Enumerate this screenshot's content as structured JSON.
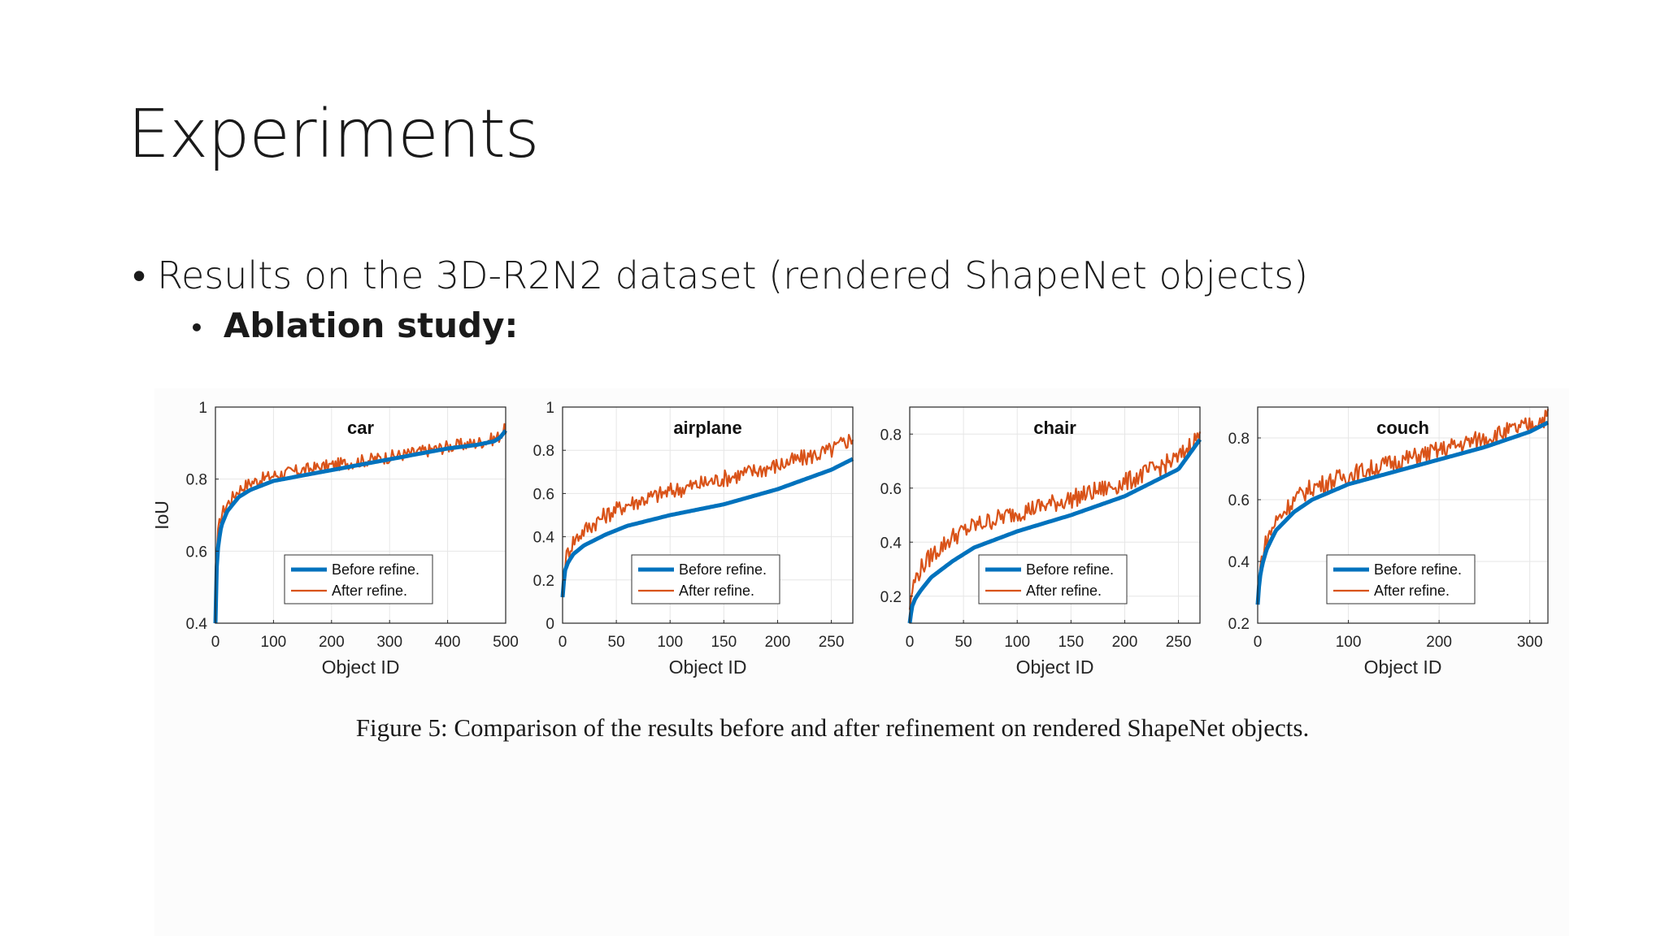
{
  "slide": {
    "title": "Experiments",
    "bullet_1": "Results on the 3D-R2N2 dataset (rendered ShapeNet objects)",
    "bullet_2": "Ablation study:",
    "bullet_marker": "•"
  },
  "figure": {
    "caption": "Figure 5: Comparison of the results before and after refinement on rendered ShapeNet objects."
  },
  "colors": {
    "before": "#0072bd",
    "after": "#d95319",
    "grid": "#e6e6e6",
    "axis": "#262626"
  },
  "chart_data": [
    {
      "type": "line",
      "title": "car",
      "xlabel": "Object ID",
      "ylabel": "IoU",
      "xlim": [
        0,
        500
      ],
      "ylim": [
        0.4,
        1
      ],
      "xticks": [
        0,
        100,
        200,
        300,
        400,
        500
      ],
      "yticks": [
        0.4,
        0.6,
        0.8,
        1
      ],
      "ytick_labels": [
        "0.4",
        "0.6",
        "0.8",
        "1"
      ],
      "grid": true,
      "legend": "bottom-right",
      "series": [
        {
          "name": "Before refine.",
          "x": [
            0,
            2,
            5,
            10,
            20,
            40,
            60,
            100,
            150,
            200,
            250,
            300,
            350,
            400,
            450,
            480,
            490,
            500
          ],
          "y": [
            0.4,
            0.55,
            0.62,
            0.67,
            0.71,
            0.75,
            0.77,
            0.795,
            0.81,
            0.825,
            0.84,
            0.855,
            0.87,
            0.885,
            0.895,
            0.905,
            0.915,
            0.935
          ]
        },
        {
          "name": "After refine.",
          "x": [
            0,
            2,
            5,
            10,
            20,
            40,
            60,
            100,
            150,
            200,
            250,
            300,
            350,
            400,
            450,
            480,
            490,
            500
          ],
          "y": [
            0.42,
            0.58,
            0.66,
            0.7,
            0.73,
            0.77,
            0.79,
            0.81,
            0.825,
            0.838,
            0.85,
            0.862,
            0.875,
            0.89,
            0.9,
            0.912,
            0.92,
            0.94
          ],
          "noise": 0.018
        }
      ]
    },
    {
      "type": "line",
      "title": "airplane",
      "xlabel": "Object ID",
      "ylabel": "",
      "xlim": [
        0,
        270
      ],
      "ylim": [
        0,
        1
      ],
      "xticks": [
        0,
        50,
        100,
        150,
        200,
        250
      ],
      "yticks": [
        0,
        0.2,
        0.4,
        0.6,
        0.8,
        1
      ],
      "ytick_labels": [
        "0",
        "0.2",
        "0.4",
        "0.6",
        "0.8",
        "1"
      ],
      "grid": true,
      "legend": "bottom-right",
      "series": [
        {
          "name": "Before refine.",
          "x": [
            0,
            2,
            5,
            10,
            20,
            40,
            60,
            100,
            150,
            200,
            250,
            270
          ],
          "y": [
            0.12,
            0.24,
            0.28,
            0.32,
            0.36,
            0.41,
            0.45,
            0.5,
            0.55,
            0.62,
            0.71,
            0.76
          ]
        },
        {
          "name": "After refine.",
          "x": [
            0,
            2,
            5,
            10,
            20,
            40,
            60,
            100,
            150,
            200,
            250,
            270
          ],
          "y": [
            0.12,
            0.28,
            0.33,
            0.38,
            0.43,
            0.5,
            0.55,
            0.61,
            0.67,
            0.73,
            0.8,
            0.86
          ],
          "noise": 0.04
        }
      ]
    },
    {
      "type": "line",
      "title": "chair",
      "xlabel": "Object ID",
      "ylabel": "",
      "xlim": [
        0,
        270
      ],
      "ylim": [
        0.1,
        0.9
      ],
      "xticks": [
        0,
        50,
        100,
        150,
        200,
        250
      ],
      "yticks": [
        0.2,
        0.4,
        0.6,
        0.8
      ],
      "ytick_labels": [
        "0.2",
        "0.4",
        "0.6",
        "0.8"
      ],
      "grid": true,
      "legend": "bottom-right",
      "series": [
        {
          "name": "Before refine.",
          "x": [
            0,
            2,
            5,
            10,
            20,
            40,
            60,
            100,
            150,
            200,
            250,
            270
          ],
          "y": [
            0.1,
            0.16,
            0.19,
            0.22,
            0.27,
            0.33,
            0.38,
            0.44,
            0.5,
            0.57,
            0.67,
            0.78
          ]
        },
        {
          "name": "After refine.",
          "x": [
            0,
            2,
            5,
            10,
            20,
            40,
            60,
            100,
            150,
            200,
            250,
            270
          ],
          "y": [
            0.15,
            0.22,
            0.26,
            0.3,
            0.35,
            0.42,
            0.46,
            0.51,
            0.56,
            0.62,
            0.71,
            0.8
          ],
          "noise": 0.035
        }
      ]
    },
    {
      "type": "line",
      "title": "couch",
      "xlabel": "Object ID",
      "ylabel": "",
      "xlim": [
        0,
        320
      ],
      "ylim": [
        0.2,
        0.9
      ],
      "xticks": [
        0,
        100,
        200,
        300
      ],
      "yticks": [
        0.2,
        0.4,
        0.6,
        0.8
      ],
      "ytick_labels": [
        "0.2",
        "0.4",
        "0.6",
        "0.8"
      ],
      "grid": true,
      "legend": "bottom-right",
      "series": [
        {
          "name": "Before refine.",
          "x": [
            0,
            2,
            5,
            10,
            20,
            40,
            60,
            100,
            150,
            200,
            250,
            300,
            320
          ],
          "y": [
            0.26,
            0.34,
            0.39,
            0.44,
            0.5,
            0.56,
            0.6,
            0.65,
            0.69,
            0.73,
            0.77,
            0.82,
            0.85
          ]
        },
        {
          "name": "After refine.",
          "x": [
            0,
            2,
            5,
            10,
            20,
            40,
            60,
            100,
            150,
            200,
            250,
            300,
            320
          ],
          "y": [
            0.27,
            0.36,
            0.42,
            0.47,
            0.53,
            0.6,
            0.64,
            0.68,
            0.72,
            0.76,
            0.8,
            0.84,
            0.87
          ],
          "noise": 0.03
        }
      ]
    }
  ]
}
